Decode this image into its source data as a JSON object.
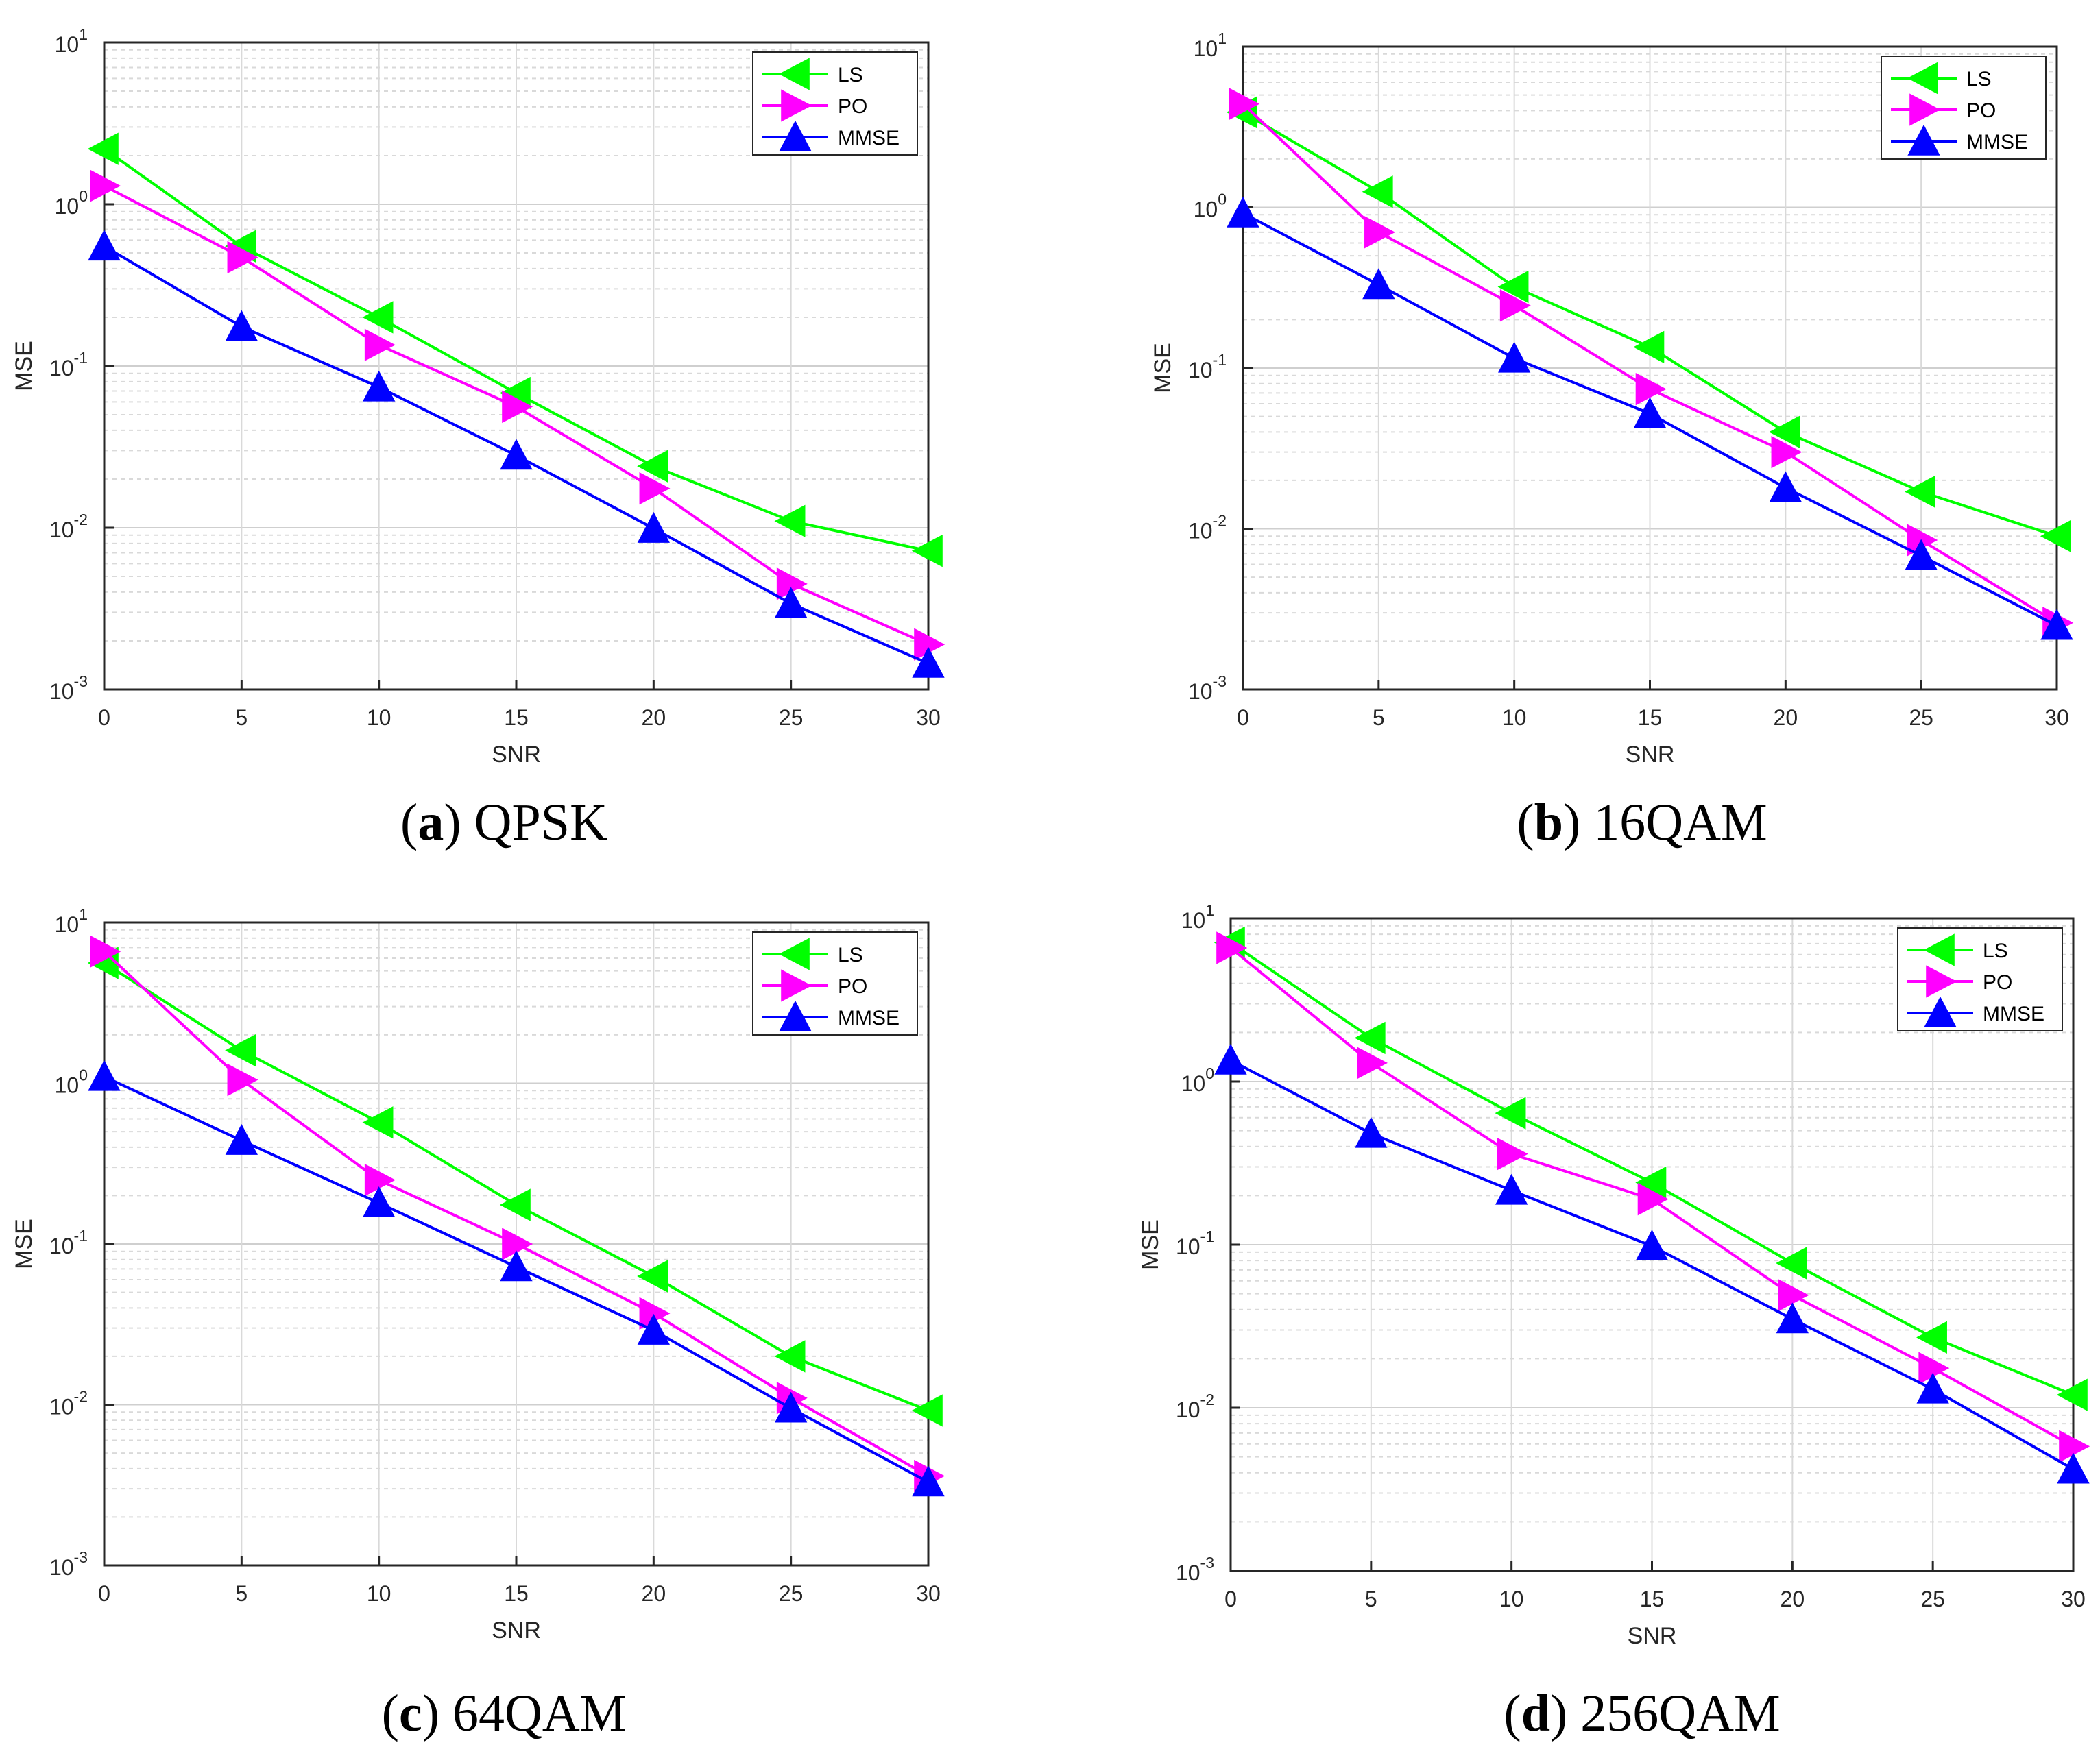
{
  "figure": {
    "x_axis_label": "SNR",
    "y_axis_label": "MSE",
    "series_names": [
      "LS",
      "PO",
      "MMSE"
    ],
    "series_colors": {
      "LS": "#00ff00",
      "PO": "#ff00ff",
      "MMSE": "#0000ff"
    },
    "series_markers": {
      "LS": "triangle-left",
      "PO": "triangle-right",
      "MMSE": "triangle-up"
    }
  },
  "chart_data": [
    {
      "type": "line",
      "caption_letter": "a",
      "caption_text": "QPSK",
      "xlabel": "SNR",
      "ylabel": "MSE",
      "xlim": [
        0,
        30
      ],
      "ylim": [
        0.001,
        10
      ],
      "yscale": "log",
      "grid": true,
      "legend": "top-right",
      "x": [
        0,
        5,
        10,
        15,
        20,
        25,
        30
      ],
      "xticks": [
        "0",
        "5",
        "10",
        "15",
        "20",
        "25",
        "30"
      ],
      "series": [
        {
          "name": "LS",
          "values": [
            2.2,
            0.55,
            0.2,
            0.068,
            0.024,
            0.011,
            0.0072
          ]
        },
        {
          "name": "PO",
          "values": [
            1.3,
            0.47,
            0.135,
            0.056,
            0.0175,
            0.0045,
            0.0019
          ]
        },
        {
          "name": "MMSE",
          "values": [
            0.55,
            0.175,
            0.074,
            0.028,
            0.0099,
            0.0034,
            0.00145
          ]
        }
      ]
    },
    {
      "type": "line",
      "caption_letter": "b",
      "caption_text": "16QAM",
      "xlabel": "SNR",
      "ylabel": "MSE",
      "xlim": [
        0,
        30
      ],
      "ylim": [
        0.001,
        10
      ],
      "yscale": "log",
      "grid": true,
      "legend": "top-right",
      "x": [
        0,
        5,
        10,
        15,
        20,
        25,
        30
      ],
      "xticks": [
        "0",
        "5",
        "10",
        "15",
        "20",
        "25",
        "30"
      ],
      "series": [
        {
          "name": "LS",
          "values": [
            3.9,
            1.25,
            0.32,
            0.135,
            0.04,
            0.017,
            0.009
          ]
        },
        {
          "name": "PO",
          "values": [
            4.4,
            0.7,
            0.245,
            0.074,
            0.03,
            0.0085,
            0.0026
          ]
        },
        {
          "name": "MMSE",
          "values": [
            0.92,
            0.33,
            0.115,
            0.052,
            0.018,
            0.0068,
            0.0025
          ]
        }
      ]
    },
    {
      "type": "line",
      "caption_letter": "c",
      "caption_text": "64QAM",
      "xlabel": "SNR",
      "ylabel": "MSE",
      "xlim": [
        0,
        30
      ],
      "ylim": [
        0.001,
        10
      ],
      "yscale": "log",
      "grid": true,
      "legend": "top-right",
      "x": [
        0,
        5,
        10,
        15,
        20,
        25,
        30
      ],
      "xticks": [
        "0",
        "5",
        "10",
        "15",
        "20",
        "25",
        "30"
      ],
      "series": [
        {
          "name": "LS",
          "values": [
            5.6,
            1.6,
            0.57,
            0.175,
            0.063,
            0.02,
            0.0092
          ]
        },
        {
          "name": "PO",
          "values": [
            6.6,
            1.05,
            0.25,
            0.1,
            0.037,
            0.011,
            0.0036
          ]
        },
        {
          "name": "MMSE",
          "values": [
            1.1,
            0.44,
            0.18,
            0.072,
            0.029,
            0.0095,
            0.0033
          ]
        }
      ]
    },
    {
      "type": "line",
      "caption_letter": "d",
      "caption_text": "256QAM",
      "xlabel": "SNR",
      "ylabel": "MSE",
      "xlim": [
        0,
        30
      ],
      "ylim": [
        0.001,
        10
      ],
      "yscale": "log",
      "grid": true,
      "legend": "top-right",
      "x": [
        0,
        5,
        10,
        15,
        20,
        25,
        30
      ],
      "xticks": [
        "0",
        "5",
        "10",
        "15",
        "20",
        "25",
        "30"
      ],
      "series": [
        {
          "name": "LS",
          "values": [
            7.1,
            1.85,
            0.64,
            0.24,
            0.077,
            0.027,
            0.012
          ]
        },
        {
          "name": "PO",
          "values": [
            6.6,
            1.3,
            0.36,
            0.19,
            0.049,
            0.0175,
            0.0058
          ]
        },
        {
          "name": "MMSE",
          "values": [
            1.35,
            0.48,
            0.215,
            0.098,
            0.035,
            0.013,
            0.0042
          ]
        }
      ]
    }
  ]
}
